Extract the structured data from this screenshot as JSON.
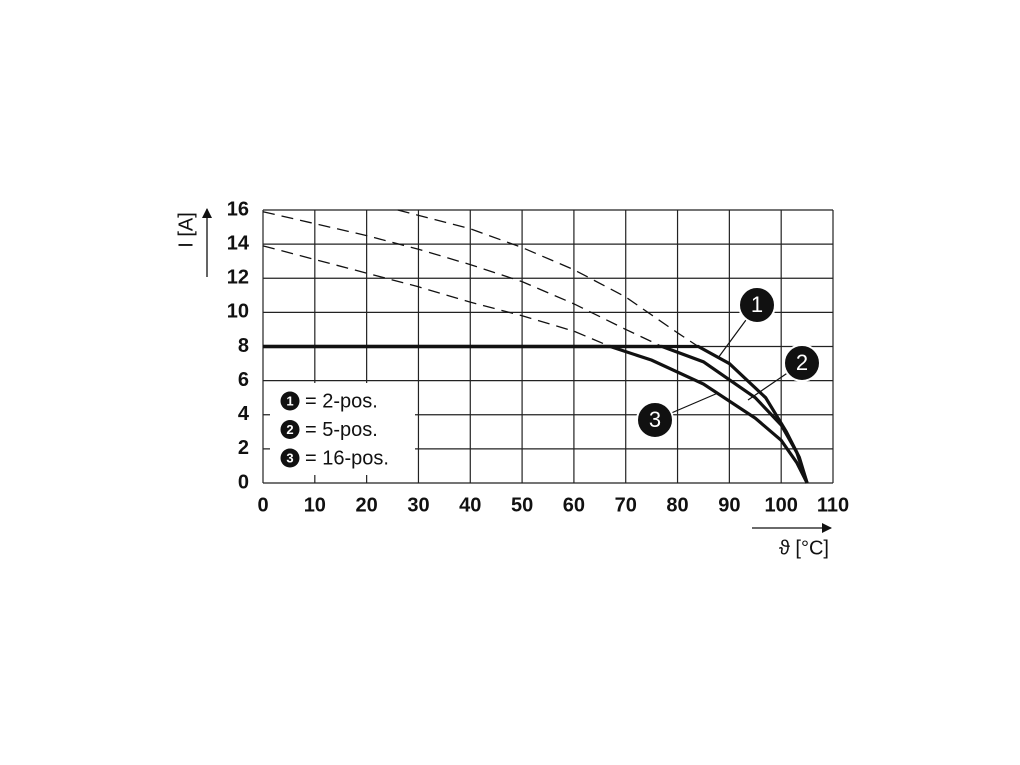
{
  "chart_data": {
    "type": "line",
    "y_label": "I [A]",
    "x_label": "ϑ [°C]",
    "xlim": [
      0,
      110
    ],
    "xticks": [
      0,
      10,
      20,
      30,
      40,
      50,
      60,
      70,
      80,
      90,
      100,
      110
    ],
    "ylim": [
      0,
      16
    ],
    "yticks": [
      0,
      2,
      4,
      6,
      8,
      10,
      12,
      14,
      16
    ],
    "grid": true,
    "series": [
      {
        "color": "#111111",
        "dashed": false,
        "x": [
          0,
          84,
          90,
          97,
          101,
          103.5,
          105
        ],
        "values": [
          8,
          8,
          7,
          5,
          3,
          1.5,
          0
        ]
      },
      {
        "color": "#111111",
        "dashed": false,
        "x": [
          0,
          77,
          85,
          95,
          100,
          103,
          105
        ],
        "values": [
          8,
          8,
          7.1,
          5,
          3.4,
          1.8,
          0
        ]
      },
      {
        "color": "#111111",
        "dashed": false,
        "x": [
          0,
          67,
          75,
          85,
          95,
          100,
          103,
          105
        ],
        "values": [
          8,
          8,
          7.2,
          5.8,
          3.8,
          2.5,
          1.2,
          0
        ]
      },
      {
        "color": "#111111",
        "dashed": true,
        "x": [
          26,
          40,
          50,
          60,
          70,
          80,
          84
        ],
        "values": [
          16,
          14.9,
          13.8,
          12.5,
          10.9,
          8.8,
          8
        ]
      },
      {
        "color": "#111111",
        "dashed": true,
        "x": [
          0,
          10,
          20,
          30,
          40,
          50,
          60,
          70,
          77
        ],
        "values": [
          15.9,
          15.2,
          14.5,
          13.7,
          12.8,
          11.8,
          10.5,
          9,
          8
        ]
      },
      {
        "color": "#111111",
        "dashed": true,
        "x": [
          0,
          10,
          20,
          30,
          40,
          50,
          60,
          67
        ],
        "values": [
          13.9,
          13.1,
          12.3,
          11.5,
          10.6,
          9.8,
          8.9,
          8
        ]
      }
    ],
    "legend": [
      {
        "marker": "1",
        "label": "= 2-pos."
      },
      {
        "marker": "2",
        "label": "= 5-pos."
      },
      {
        "marker": "3",
        "label": "= 16-pos."
      }
    ],
    "annotations": [
      "1",
      "2",
      "3"
    ]
  }
}
